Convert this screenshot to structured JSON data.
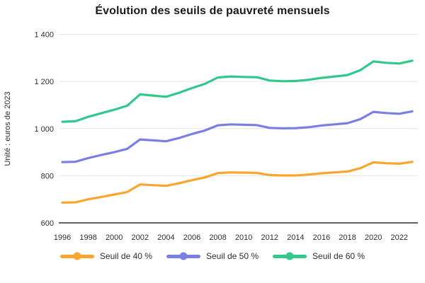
{
  "title": "Évolution des seuils de pauvreté mensuels",
  "colors": {
    "seuil40": "#F9A62F",
    "seuil50": "#7B7FE4",
    "seuil60": "#31C88C",
    "gridline": "#e4e4e4",
    "axis_line": "#2f2f2f",
    "tick_text": "#2e2e2e",
    "title_text": "#1b1b1b"
  },
  "chart_data": {
    "type": "line",
    "title": "Évolution des seuils de pauvreté mensuels",
    "xlabel": "",
    "ylabel": "Unité : euros de 2023",
    "ylim": [
      600,
      1400
    ],
    "yticks": [
      600,
      800,
      1000,
      1200,
      1400
    ],
    "ytick_labels": [
      "600",
      "800",
      "1 000",
      "1 200",
      "1 400"
    ],
    "xticks": [
      1996,
      1998,
      2000,
      2002,
      2004,
      2006,
      2008,
      2010,
      2012,
      2014,
      2016,
      2018,
      2020,
      2022
    ],
    "grid": true,
    "legend_position": "bottom",
    "x": [
      1996,
      1997,
      1998,
      1999,
      2000,
      2001,
      2002,
      2003,
      2004,
      2005,
      2006,
      2007,
      2008,
      2009,
      2010,
      2011,
      2012,
      2013,
      2014,
      2015,
      2016,
      2017,
      2018,
      2019,
      2020,
      2021,
      2022,
      2023
    ],
    "series": [
      {
        "name": "Seuil de 40 %",
        "color": "#F9A62F",
        "values": [
          686,
          687,
          700,
          710,
          720,
          731,
          763,
          760,
          757,
          768,
          781,
          793,
          811,
          814,
          813,
          812,
          803,
          801,
          801,
          805,
          810,
          814,
          818,
          832,
          857,
          853,
          851,
          859
        ]
      },
      {
        "name": "Seuil de 50 %",
        "color": "#7B7FE4",
        "values": [
          858,
          859,
          875,
          888,
          900,
          914,
          954,
          950,
          946,
          960,
          977,
          992,
          1014,
          1018,
          1016,
          1015,
          1003,
          1001,
          1002,
          1006,
          1013,
          1018,
          1023,
          1040,
          1071,
          1066,
          1063,
          1073
        ]
      },
      {
        "name": "Seuil de 60 %",
        "color": "#31C88C",
        "values": [
          1029,
          1031,
          1050,
          1065,
          1080,
          1097,
          1145,
          1140,
          1135,
          1152,
          1172,
          1190,
          1217,
          1221,
          1219,
          1218,
          1204,
          1201,
          1202,
          1207,
          1215,
          1221,
          1227,
          1248,
          1285,
          1279,
          1276,
          1288
        ]
      }
    ]
  }
}
